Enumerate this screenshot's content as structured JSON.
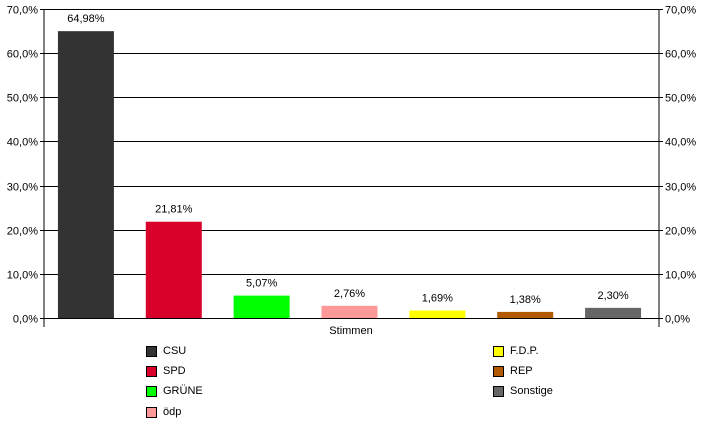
{
  "chart_data": {
    "type": "bar",
    "xlabel": "Stimmen",
    "categories": [
      "CSU",
      "SPD",
      "GRÜNE",
      "ödp",
      "F.D.P.",
      "REP",
      "Sonstige"
    ],
    "values": [
      64.98,
      21.81,
      5.07,
      2.76,
      1.69,
      1.38,
      2.3
    ],
    "value_labels": [
      "64,98%",
      "21,81%",
      "5,07%",
      "2,76%",
      "1,69%",
      "1,38%",
      "2,30%"
    ],
    "colors": [
      "#333333",
      "#d9002a",
      "#00ff00",
      "#ff9999",
      "#ffff00",
      "#b35a00",
      "#666666"
    ],
    "ylim": [
      0,
      70
    ],
    "yticks": [
      0,
      10,
      20,
      30,
      40,
      50,
      60,
      70
    ],
    "ytick_labels": [
      "0,0%",
      "10,0%",
      "20,0%",
      "30,0%",
      "40,0%",
      "50,0%",
      "60,0%",
      "70,0%"
    ],
    "grid": true,
    "legend_position": "bottom"
  }
}
